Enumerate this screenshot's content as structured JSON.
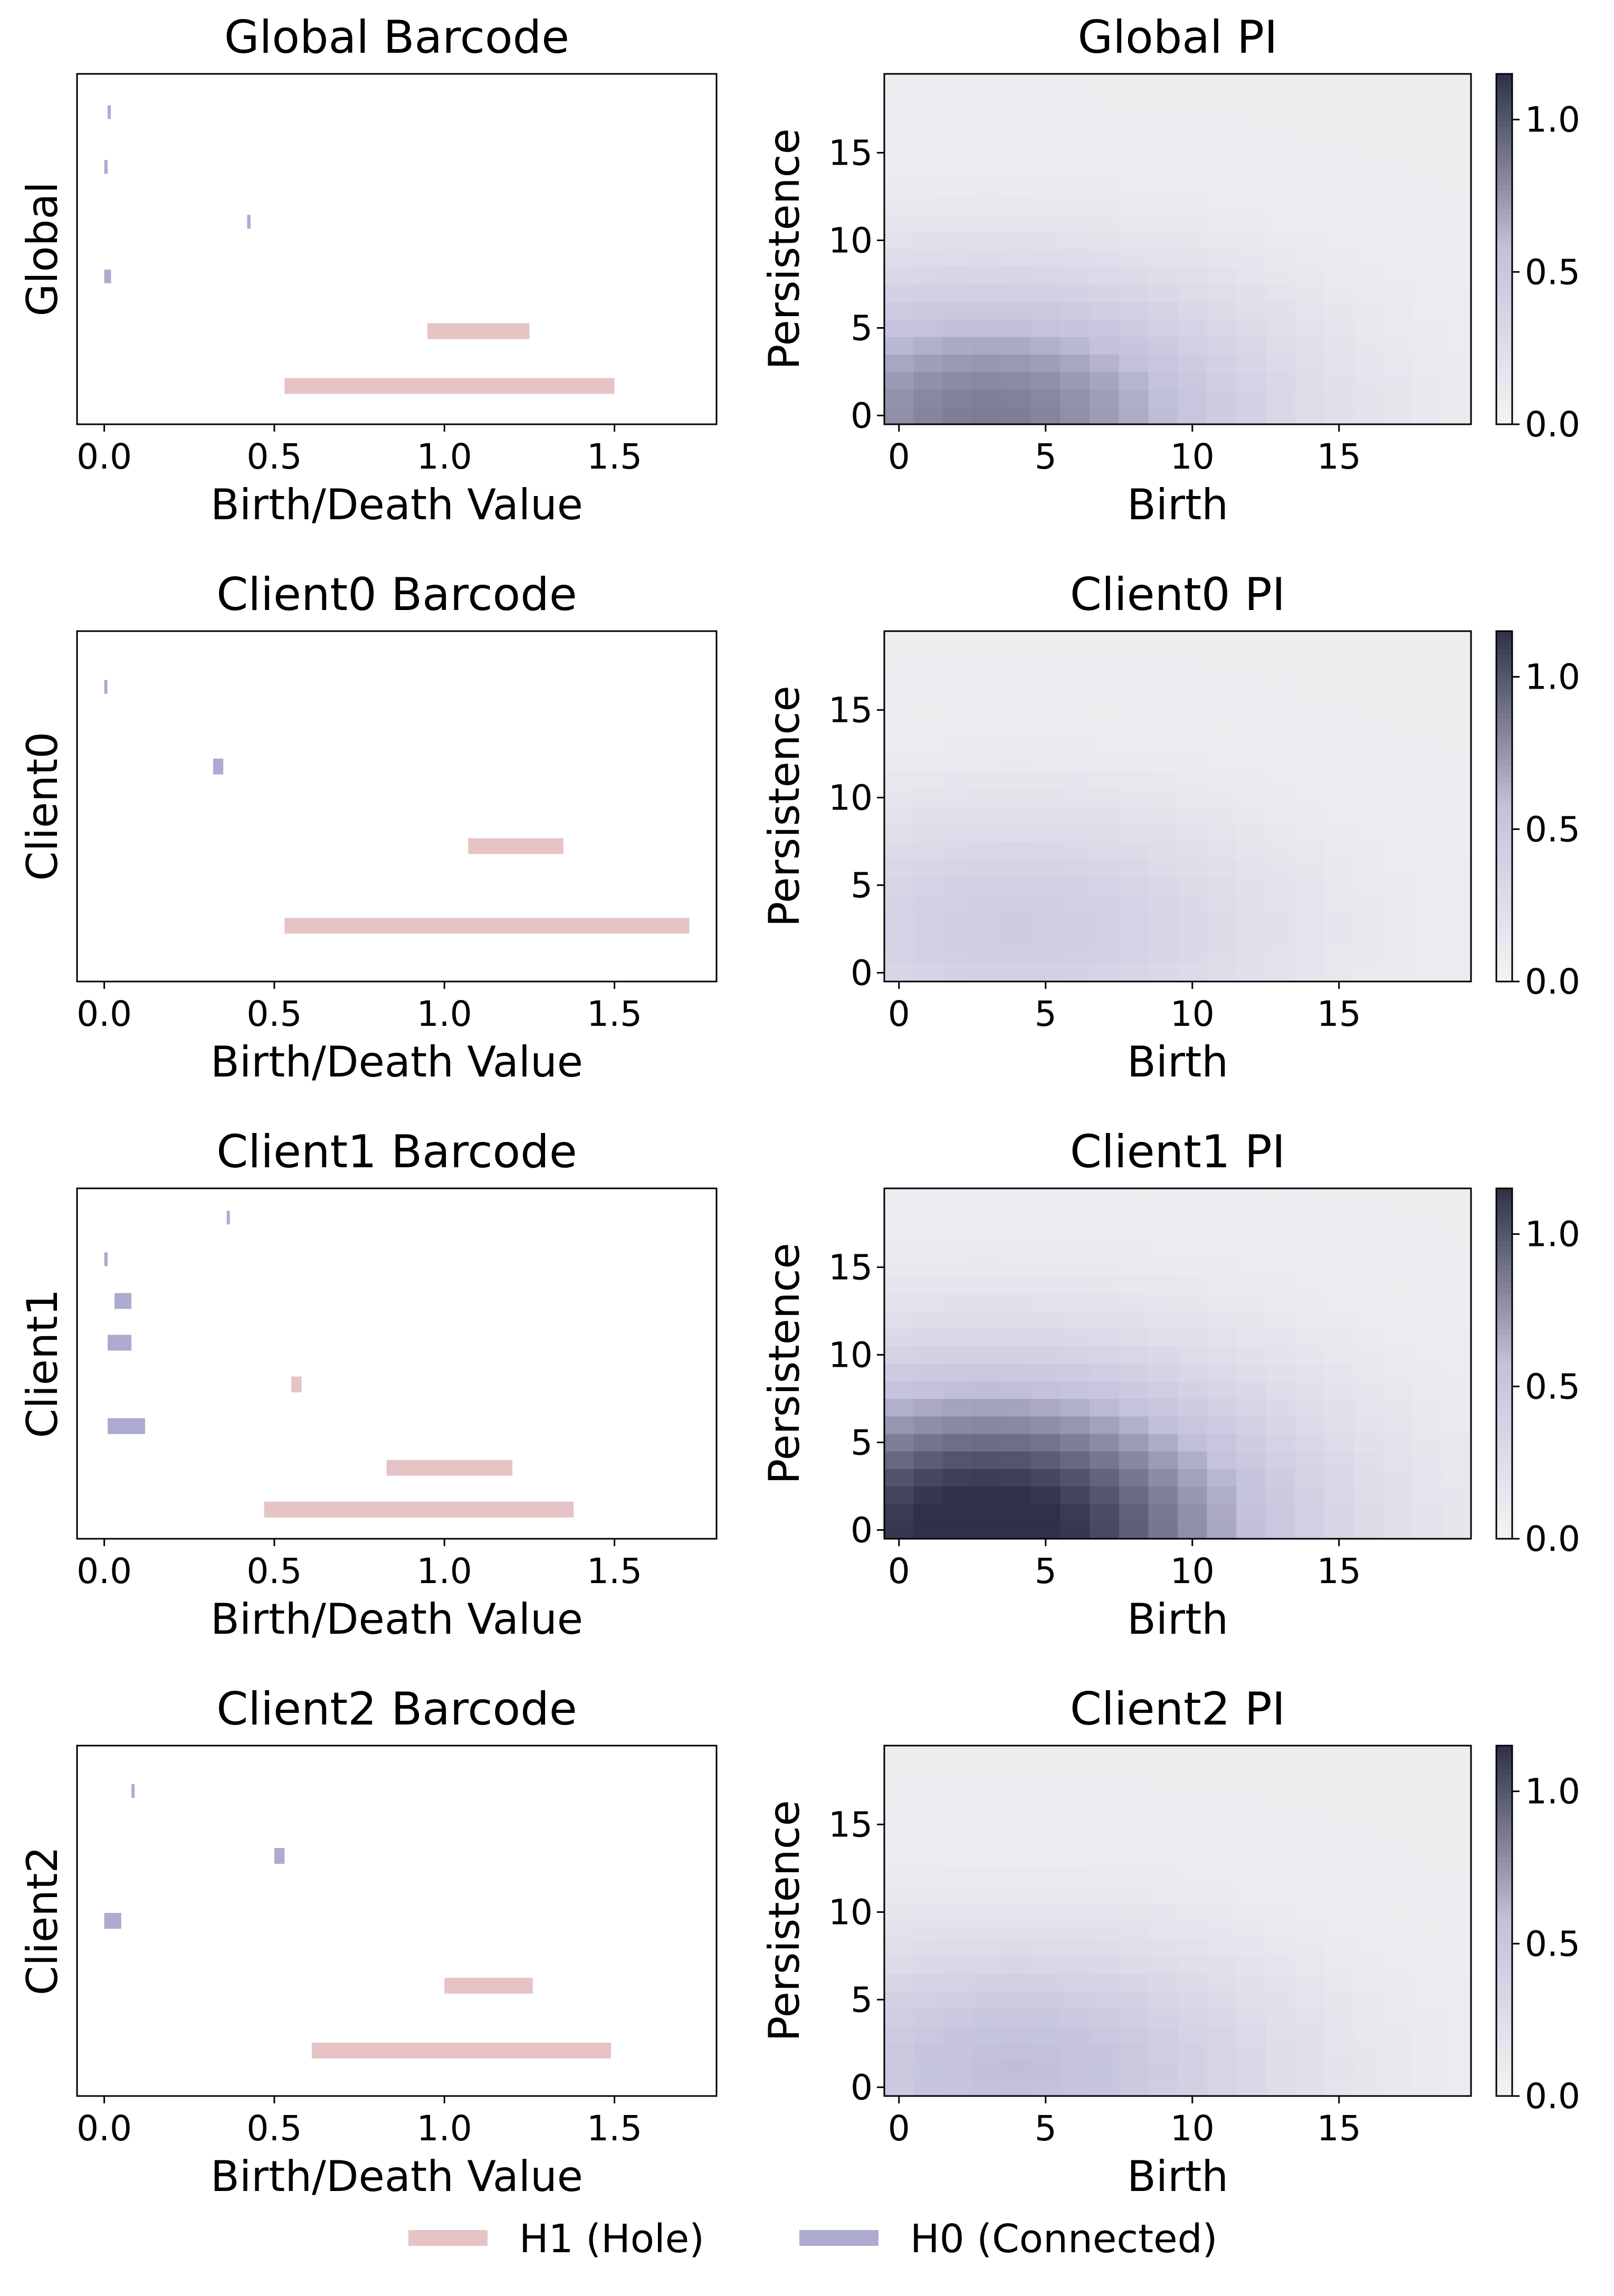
{
  "colors": {
    "h1": "#e6c3c5",
    "h0": "#adabcf",
    "cmap_low": "#f4f4f4",
    "cmap_mid": "#c3c1dc",
    "cmap_high": "#2e3148"
  },
  "legend": {
    "h1_label": "H1 (Hole)",
    "h0_label": "H0 (Connected)"
  },
  "chart_data": [
    {
      "type": "barcode",
      "title": "Global Barcode",
      "xlabel": "Birth/Death Value",
      "ylabel": "Global",
      "xlim": [
        -0.08,
        1.8
      ],
      "xticks": [
        0.0,
        0.5,
        1.0,
        1.5
      ],
      "bars": [
        {
          "dim": "H1",
          "birth": 0.53,
          "death": 1.5
        },
        {
          "dim": "H1",
          "birth": 0.95,
          "death": 1.25
        },
        {
          "dim": "H0",
          "birth": 0.0,
          "death": 0.02
        },
        {
          "dim": "H0",
          "birth": 0.42,
          "death": 0.43
        },
        {
          "dim": "H0",
          "birth": 0.0,
          "death": 0.01
        },
        {
          "dim": "H0",
          "birth": 0.01,
          "death": 0.012
        }
      ]
    },
    {
      "type": "heatmap",
      "title": "Global PI",
      "xlabel": "Birth",
      "ylabel": "Persistence",
      "xticks": [
        0,
        5,
        10,
        15
      ],
      "yticks": [
        0,
        5,
        10,
        15
      ],
      "grid_size": 20,
      "colorbar": {
        "ticks": [
          0.0,
          0.5,
          1.0
        ],
        "range": [
          0,
          1.15
        ]
      },
      "peak": 0.78,
      "center": [
        3.0,
        0.0
      ],
      "sigma_birth": 9.5,
      "sigma_persistence": 7.8
    },
    {
      "type": "barcode",
      "title": "Client0 Barcode",
      "xlabel": "Birth/Death Value",
      "ylabel": "Client0",
      "xlim": [
        -0.08,
        1.8
      ],
      "xticks": [
        0.0,
        0.5,
        1.0,
        1.5
      ],
      "bars": [
        {
          "dim": "H1",
          "birth": 0.53,
          "death": 1.72
        },
        {
          "dim": "H1",
          "birth": 1.07,
          "death": 1.35
        },
        {
          "dim": "H0",
          "birth": 0.32,
          "death": 0.35
        },
        {
          "dim": "H0",
          "birth": 0.0,
          "death": 0.005
        }
      ]
    },
    {
      "type": "heatmap",
      "title": "Client0 PI",
      "xlabel": "Birth",
      "ylabel": "Persistence",
      "xticks": [
        0,
        5,
        10,
        15
      ],
      "yticks": [
        0,
        5,
        10,
        15
      ],
      "grid_size": 20,
      "colorbar": {
        "ticks": [
          0.0,
          0.5,
          1.0
        ],
        "range": [
          0,
          1.15
        ]
      },
      "peak": 0.38,
      "center": [
        4.0,
        2.5
      ],
      "sigma_birth": 9.0,
      "sigma_persistence": 7.0
    },
    {
      "type": "barcode",
      "title": "Client1 Barcode",
      "xlabel": "Birth/Death Value",
      "ylabel": "Client1",
      "xlim": [
        -0.08,
        1.8
      ],
      "xticks": [
        0.0,
        0.5,
        1.0,
        1.5
      ],
      "bars": [
        {
          "dim": "H1",
          "birth": 0.47,
          "death": 1.38
        },
        {
          "dim": "H1",
          "birth": 0.83,
          "death": 1.2
        },
        {
          "dim": "H0",
          "birth": 0.01,
          "death": 0.12
        },
        {
          "dim": "H1",
          "birth": 0.55,
          "death": 0.58
        },
        {
          "dim": "H0",
          "birth": 0.01,
          "death": 0.08
        },
        {
          "dim": "H0",
          "birth": 0.03,
          "death": 0.08
        },
        {
          "dim": "H0",
          "birth": 0.0,
          "death": 0.01
        },
        {
          "dim": "H0",
          "birth": 0.36,
          "death": 0.365
        }
      ]
    },
    {
      "type": "heatmap",
      "title": "Client1 PI",
      "xlabel": "Birth",
      "ylabel": "Persistence",
      "xticks": [
        0,
        5,
        10,
        15
      ],
      "yticks": [
        0,
        5,
        10,
        15
      ],
      "grid_size": 20,
      "colorbar": {
        "ticks": [
          0.0,
          0.5,
          1.0
        ],
        "range": [
          0,
          1.15
        ]
      },
      "peak": 1.15,
      "center": [
        3.0,
        0.0
      ],
      "sigma_birth": 10.0,
      "sigma_persistence": 9.0
    },
    {
      "type": "barcode",
      "title": "Client2 Barcode",
      "xlabel": "Birth/Death Value",
      "ylabel": "Client2",
      "xlim": [
        -0.08,
        1.8
      ],
      "xticks": [
        0.0,
        0.5,
        1.0,
        1.5
      ],
      "bars": [
        {
          "dim": "H1",
          "birth": 0.61,
          "death": 1.49
        },
        {
          "dim": "H1",
          "birth": 1.0,
          "death": 1.26
        },
        {
          "dim": "H0",
          "birth": 0.0,
          "death": 0.05
        },
        {
          "dim": "H0",
          "birth": 0.5,
          "death": 0.53
        },
        {
          "dim": "H0",
          "birth": 0.08,
          "death": 0.085
        }
      ]
    },
    {
      "type": "heatmap",
      "title": "Client2 PI",
      "xlabel": "Birth",
      "ylabel": "Persistence",
      "xticks": [
        0,
        5,
        10,
        15
      ],
      "yticks": [
        0,
        5,
        10,
        15
      ],
      "grid_size": 20,
      "colorbar": {
        "ticks": [
          0.0,
          0.5,
          1.0
        ],
        "range": [
          0,
          1.15
        ]
      },
      "peak": 0.52,
      "center": [
        4.0,
        1.0
      ],
      "sigma_birth": 9.0,
      "sigma_persistence": 7.3
    }
  ]
}
